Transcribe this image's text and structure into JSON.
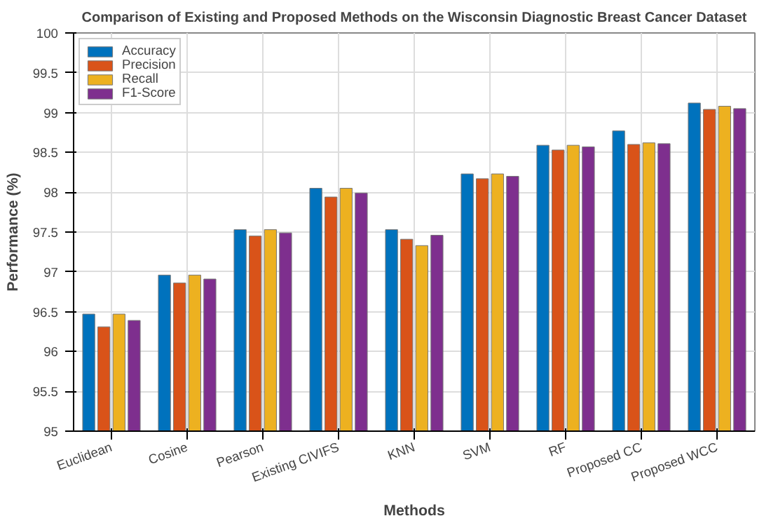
{
  "chart_data": {
    "type": "bar",
    "title": "Comparison of Existing and Proposed Methods on the Wisconsin Diagnostic Breast Cancer Dataset",
    "xlabel": "Methods",
    "ylabel": "Performance (%)",
    "categories": [
      "Euclidean",
      "Cosine",
      "Pearson",
      "Existing CIVIFS",
      "KNN",
      "SVM",
      "RF",
      "Proposed CC",
      "Proposed WCC"
    ],
    "series": [
      {
        "name": "Accuracy",
        "color": "#0072bd",
        "values": [
          96.47,
          96.96,
          97.53,
          98.05,
          97.53,
          98.23,
          98.59,
          98.77,
          99.12
        ]
      },
      {
        "name": "Precision",
        "color": "#d95319",
        "values": [
          96.31,
          96.86,
          97.45,
          97.94,
          97.41,
          98.17,
          98.53,
          98.6,
          99.04
        ]
      },
      {
        "name": "Recall",
        "color": "#edb120",
        "values": [
          96.47,
          96.96,
          97.53,
          98.05,
          97.33,
          98.23,
          98.59,
          98.62,
          99.08
        ]
      },
      {
        "name": "F1-Score",
        "color": "#7e2f8e",
        "values": [
          96.39,
          96.91,
          97.49,
          97.99,
          97.46,
          98.2,
          98.57,
          98.61,
          99.05
        ]
      }
    ],
    "ylim": [
      95,
      100
    ],
    "yticks": [
      95,
      95.5,
      96,
      96.5,
      97,
      97.5,
      98,
      98.5,
      99,
      99.5,
      100
    ],
    "grid": true,
    "legend": "top left"
  }
}
